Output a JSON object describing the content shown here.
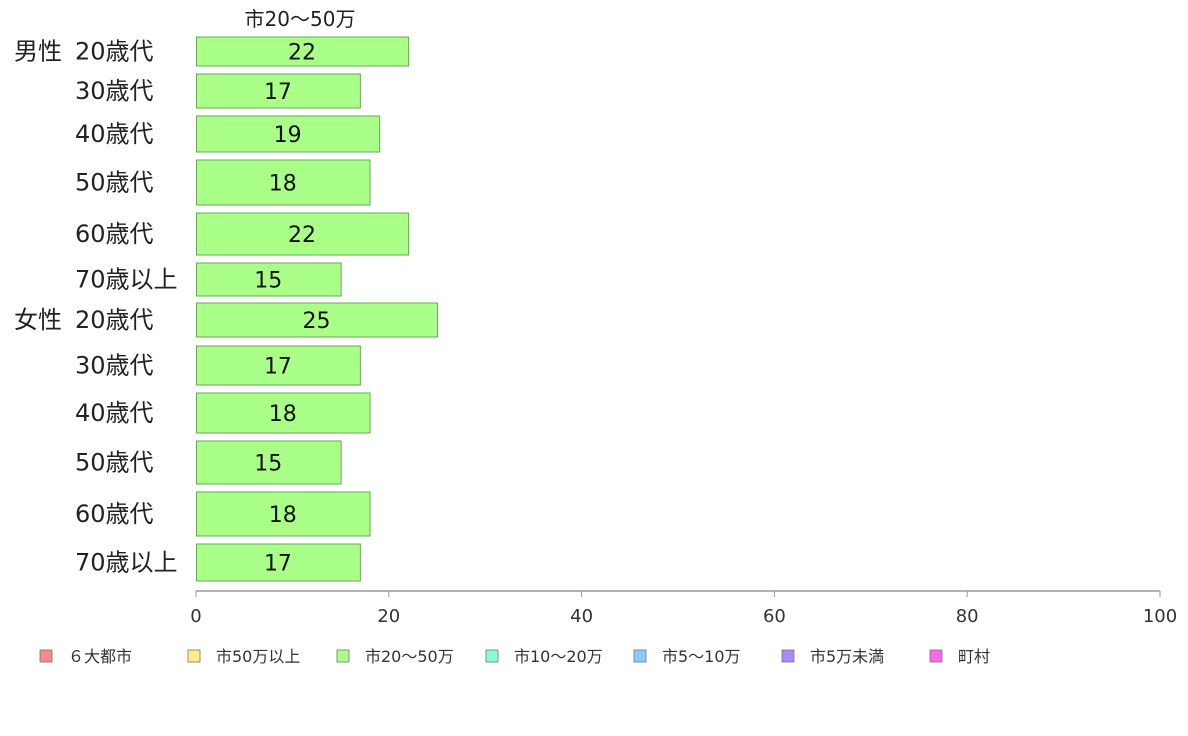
{
  "chart_data": {
    "type": "bar",
    "orientation": "horizontal",
    "title": "市20〜50万",
    "xlim": [
      0,
      100
    ],
    "x_ticks": [
      "0",
      "20",
      "40",
      "60",
      "80",
      "100"
    ],
    "groups": [
      {
        "label": "男性",
        "categories": [
          "20歳代",
          "30歳代",
          "40歳代",
          "50歳代",
          "60歳代",
          "70歳以上"
        ],
        "values": [
          22,
          17,
          19,
          18,
          22,
          15
        ]
      },
      {
        "label": "女性",
        "categories": [
          "20歳代",
          "30歳代",
          "40歳代",
          "50歳代",
          "60歳代",
          "70歳以上"
        ],
        "values": [
          25,
          17,
          18,
          15,
          18,
          17
        ]
      }
    ],
    "value_labels": [
      "22",
      "17",
      "19",
      "18",
      "22",
      "15",
      "25",
      "17",
      "18",
      "15",
      "18",
      "17"
    ],
    "bar_color": "#aaff88",
    "bar_border_color": "#66aa55",
    "grid": false,
    "legend": {
      "placement": "bottom",
      "entries": [
        {
          "label": "６大都市",
          "color": "#ff8888"
        },
        {
          "label": "市50万以上",
          "color": "#ffee88"
        },
        {
          "label": "市20〜50万",
          "color": "#aaff88"
        },
        {
          "label": "市10〜20万",
          "color": "#88ffcc"
        },
        {
          "label": "市5〜10万",
          "color": "#88ccff"
        },
        {
          "label": "市5万未満",
          "color": "#aa88ff"
        },
        {
          "label": "町村",
          "color": "#ff66ee"
        }
      ]
    }
  }
}
